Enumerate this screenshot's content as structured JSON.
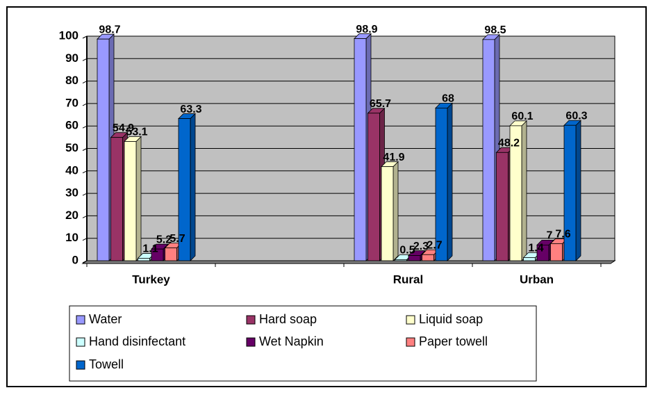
{
  "chart_data": {
    "type": "bar3d",
    "categories": [
      "Turkey",
      null,
      "Rural",
      "Urban"
    ],
    "series": [
      {
        "name": "Water",
        "color": "#9999ff",
        "values": [
          98.7,
          null,
          98.9,
          98.5
        ]
      },
      {
        "name": "Hard soap",
        "color": "#993366",
        "values": [
          54.9,
          null,
          65.7,
          48.2
        ]
      },
      {
        "name": "Liquid soap",
        "color": "#ffffcc",
        "values": [
          53.1,
          null,
          41.9,
          60.1
        ]
      },
      {
        "name": "Hand disinfectant",
        "color": "#ccffff",
        "values": [
          1.1,
          null,
          0.5,
          1.4
        ]
      },
      {
        "name": "Wet Napkin",
        "color": "#660066",
        "values": [
          5.2,
          null,
          2.3,
          7
        ]
      },
      {
        "name": "Paper towell",
        "color": "#ff8080",
        "values": [
          5.7,
          null,
          2.7,
          7.6
        ]
      },
      {
        "name": "Towell",
        "color": "#0066cc",
        "values": [
          63.3,
          null,
          68,
          60.3
        ]
      }
    ],
    "ylim": [
      0,
      100
    ],
    "yticks": [
      0,
      10,
      20,
      30,
      40,
      50,
      60,
      70,
      80,
      90,
      100
    ],
    "grid": true,
    "legend": "bottom"
  }
}
